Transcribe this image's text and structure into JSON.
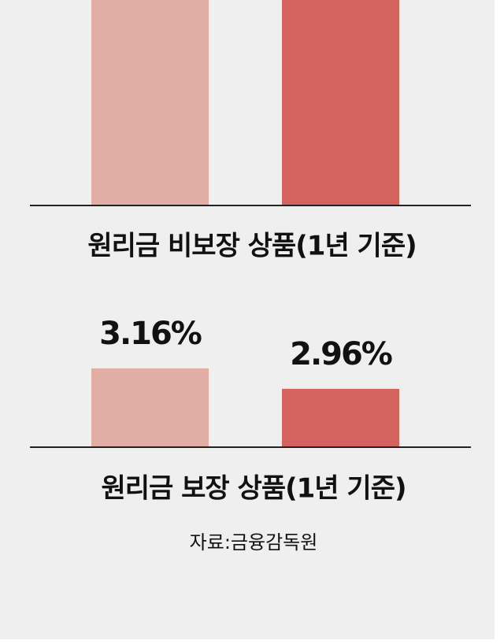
{
  "chart_data": [
    {
      "type": "bar",
      "title": "원리금 비보장 상품(1년 기준)"
    },
    {
      "type": "bar",
      "title": "원리금 보장 상품(1년 기준)",
      "categories": [
        null,
        null
      ],
      "values": [
        3.16,
        2.96
      ],
      "value_labels": [
        "3.16%",
        "2.96%"
      ],
      "colors": [
        "#e0aea4",
        "#d4635f"
      ],
      "ylim": [
        2.39,
        3.39
      ]
    }
  ],
  "source": "자료:금융감독원"
}
